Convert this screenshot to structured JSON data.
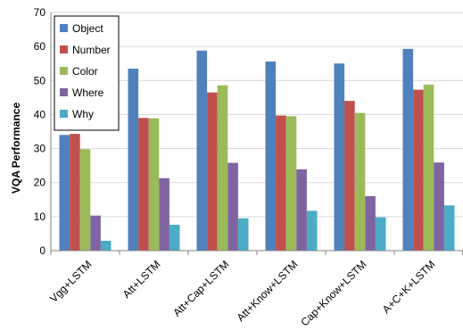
{
  "chart_data": {
    "type": "bar",
    "ylabel": "VQA Performance",
    "xlabel": "",
    "ylim": [
      0,
      70
    ],
    "yticks": [
      0,
      10,
      20,
      30,
      40,
      50,
      60,
      70
    ],
    "grid": true,
    "legend_position": "top-left",
    "categories": [
      "Vgg+LSTM",
      "Att+LSTM",
      "Att+Cap+LSTM",
      "Att+Know+LSTM",
      "Cap+Know+LSTM",
      "A+C+K+LSTM"
    ],
    "series": [
      {
        "name": "Object",
        "color": "#4F81BD",
        "values": [
          34.0,
          53.5,
          58.8,
          55.6,
          55.0,
          59.3
        ]
      },
      {
        "name": "Number",
        "color": "#C0504D",
        "values": [
          34.3,
          39.0,
          46.5,
          39.7,
          44.0,
          47.3
        ]
      },
      {
        "name": "Color",
        "color": "#9BBB59",
        "values": [
          29.8,
          38.9,
          48.6,
          39.5,
          40.5,
          48.8
        ]
      },
      {
        "name": "Where",
        "color": "#8064A2",
        "values": [
          10.3,
          21.3,
          25.8,
          23.9,
          16.0,
          25.9
        ]
      },
      {
        "name": "Why",
        "color": "#4BACC6",
        "values": [
          2.9,
          7.6,
          9.5,
          11.7,
          9.8,
          13.3
        ]
      }
    ]
  }
}
